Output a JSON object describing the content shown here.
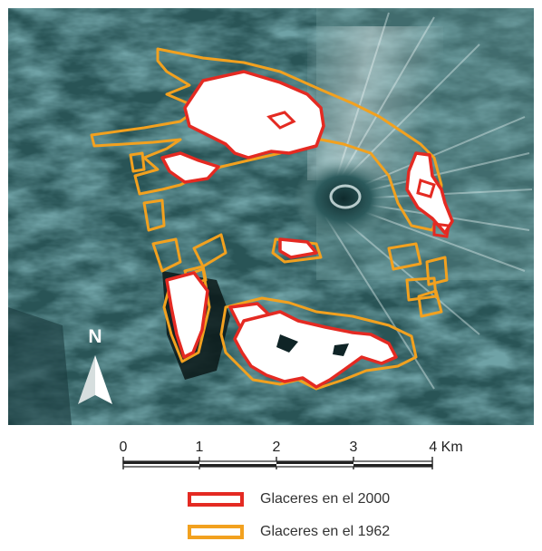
{
  "map": {
    "colors": {
      "terrain_dark": "#173a3d",
      "terrain_mid": "#3c6e70",
      "terrain_light": "#7fa6a6",
      "glacier_2000": "#e42a22",
      "glacier_1962": "#f2a11f",
      "ice_fill": "#ffffff"
    },
    "north_arrow": {
      "label": "N"
    },
    "scale_bar": {
      "ticks": [
        "0",
        "1",
        "2",
        "3",
        "4 Km"
      ]
    },
    "legend": {
      "items": [
        {
          "label": "Glaceres en el 2000",
          "color": "#e42a22"
        },
        {
          "label": "Glaceres en el 1962",
          "color": "#f2a11f"
        }
      ]
    }
  }
}
